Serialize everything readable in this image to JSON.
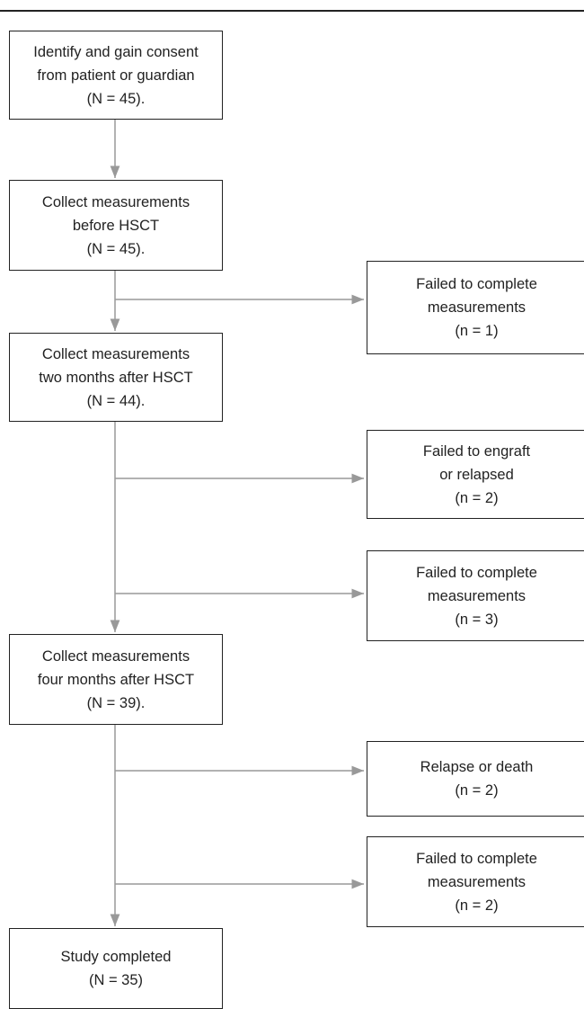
{
  "nodes": [
    {
      "lines": [
        "Identify and gain consent",
        "from patient or guardian",
        "(N = 45)."
      ]
    },
    {
      "lines": [
        "Collect measurements",
        "before HSCT",
        "(N = 45)."
      ]
    },
    {
      "lines": [
        "Collect measurements",
        "two months after HSCT",
        "(N = 44)."
      ]
    },
    {
      "lines": [
        "Collect measurements",
        "four months after HSCT",
        "(N = 39)."
      ]
    },
    {
      "lines": [
        "Study completed",
        "(N = 35)"
      ]
    }
  ],
  "exclusions": [
    {
      "lines": [
        "Failed to complete",
        "measurements",
        "(n = 1)"
      ]
    },
    {
      "lines": [
        "Failed to engraft",
        "or relapsed",
        "(n = 2)"
      ]
    },
    {
      "lines": [
        "Failed to complete",
        "measurements",
        "(n = 3)"
      ]
    },
    {
      "lines": [
        "Relapse or death",
        "(n = 2)"
      ]
    },
    {
      "lines": [
        "Failed to complete",
        "measurements",
        "(n = 2)"
      ]
    }
  ]
}
